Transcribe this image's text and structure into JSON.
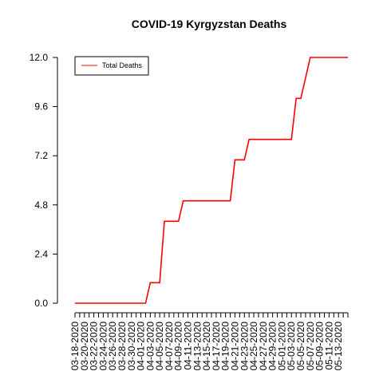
{
  "chart_data": {
    "type": "line",
    "title": "COVID-19 Kyrgyzstan Deaths",
    "xlabel": "",
    "ylabel": "",
    "ylim": [
      0,
      12
    ],
    "y_ticks": [
      "0.0",
      "2.4",
      "4.8",
      "7.2",
      "9.6",
      "12.0"
    ],
    "x_tick_labels": [
      "03-18-2020",
      "03-20-2020",
      "03-22-2020",
      "03-24-2020",
      "03-26-2020",
      "03-28-2020",
      "03-30-2020",
      "04-01-2020",
      "04-03-2020",
      "04-05-2020",
      "04-07-2020",
      "04-09-2020",
      "04-11-2020",
      "04-13-2020",
      "04-15-2020",
      "04-17-2020",
      "04-19-2020",
      "04-21-2020",
      "04-23-2020",
      "04-25-2020",
      "04-27-2020",
      "04-29-2020",
      "05-01-2020",
      "05-03-2020",
      "05-05-2020",
      "05-07-2020",
      "05-09-2020",
      "05-11-2020",
      "05-13-2020"
    ],
    "x": [
      "03-18-2020",
      "03-19-2020",
      "03-20-2020",
      "03-21-2020",
      "03-22-2020",
      "03-23-2020",
      "03-24-2020",
      "03-25-2020",
      "03-26-2020",
      "03-27-2020",
      "03-28-2020",
      "03-29-2020",
      "03-30-2020",
      "03-31-2020",
      "04-01-2020",
      "04-02-2020",
      "04-03-2020",
      "04-04-2020",
      "04-05-2020",
      "04-06-2020",
      "04-07-2020",
      "04-08-2020",
      "04-09-2020",
      "04-10-2020",
      "04-11-2020",
      "04-12-2020",
      "04-13-2020",
      "04-14-2020",
      "04-15-2020",
      "04-16-2020",
      "04-17-2020",
      "04-18-2020",
      "04-19-2020",
      "04-20-2020",
      "04-21-2020",
      "04-22-2020",
      "04-23-2020",
      "04-24-2020",
      "04-25-2020",
      "04-26-2020",
      "04-27-2020",
      "04-28-2020",
      "04-29-2020",
      "04-30-2020",
      "05-01-2020",
      "05-02-2020",
      "05-03-2020",
      "05-04-2020",
      "05-05-2020",
      "05-06-2020",
      "05-07-2020",
      "05-08-2020",
      "05-09-2020",
      "05-10-2020",
      "05-11-2020",
      "05-12-2020",
      "05-13-2020",
      "05-14-2020",
      "05-15-2020"
    ],
    "series": [
      {
        "name": "Total Deaths",
        "color": "#ff0000",
        "values": [
          0,
          0,
          0,
          0,
          0,
          0,
          0,
          0,
          0,
          0,
          0,
          0,
          0,
          0,
          0,
          0,
          1,
          1,
          1,
          4,
          4,
          4,
          4,
          5,
          5,
          5,
          5,
          5,
          5,
          5,
          5,
          5,
          5,
          5,
          7,
          7,
          7,
          8,
          8,
          8,
          8,
          8,
          8,
          8,
          8,
          8,
          8,
          10,
          10,
          11,
          12,
          12,
          12,
          12,
          12,
          12,
          12,
          12,
          12
        ]
      }
    ],
    "legend": {
      "position": "top-left",
      "entries": [
        "Total Deaths"
      ]
    },
    "grid": false
  }
}
